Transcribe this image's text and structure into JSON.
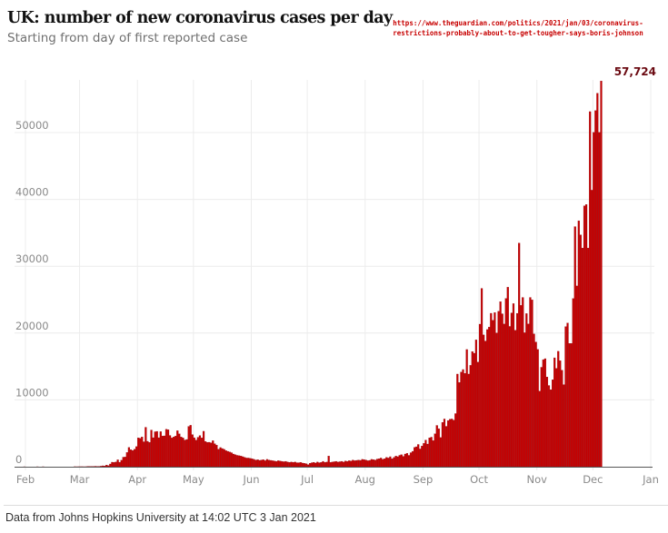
{
  "header": {
    "title": "UK: number of new coronavirus cases per day",
    "subtitle": "Starting from day of first reported case",
    "source_url_line1": "https://www.theguardian.com/politics/2021/jan/03/coronavirus-",
    "source_url_line2": "restrictions-probably-about-to-get-tougher-says-boris-johnson"
  },
  "footer": {
    "text": "Data from Johns Hopkins University at 14:02 UTC 3 Jan 2021"
  },
  "colors": {
    "bar": "#c70000",
    "bar_edge": "#8e0a12",
    "peak_label": "#6b0a12",
    "grid": "#ececec",
    "axis": "#555555"
  },
  "chart_data": {
    "type": "bar",
    "title": "UK: number of new coronavirus cases per day",
    "subtitle": "Starting from day of first reported case",
    "xlabel": "",
    "ylabel": "",
    "ylim": [
      0,
      57724
    ],
    "yticks": [
      0,
      10000,
      20000,
      30000,
      40000,
      50000
    ],
    "ytick_labels": [
      "0",
      "10000",
      "20000",
      "30000",
      "40000",
      "50000"
    ],
    "xtick_labels": [
      "Feb",
      "Mar",
      "Apr",
      "May",
      "Jun",
      "Jul",
      "Aug",
      "Sep",
      "Oct",
      "Nov",
      "Dec",
      "Jan"
    ],
    "xtick_day_index": [
      1,
      30,
      61,
      91,
      122,
      152,
      183,
      214,
      244,
      275,
      305,
      336
    ],
    "grid": true,
    "legend": "none",
    "peak_annotation": "57,724",
    "start_date": "2020-01-31",
    "values": [
      2,
      0,
      0,
      0,
      0,
      0,
      0,
      1,
      0,
      0,
      4,
      0,
      0,
      0,
      0,
      0,
      0,
      0,
      0,
      0,
      0,
      0,
      0,
      0,
      0,
      0,
      0,
      13,
      4,
      11,
      12,
      13,
      6,
      11,
      34,
      30,
      48,
      43,
      67,
      48,
      52,
      83,
      134,
      117,
      251,
      152,
      407,
      680,
      647,
      706,
      1035,
      665,
      967,
      1427,
      1452,
      2129,
      2885,
      2546,
      2433,
      2619,
      3009,
      4324,
      4244,
      4450,
      3735,
      5903,
      3802,
      3634,
      5491,
      4344,
      5233,
      5288,
      4342,
      5252,
      4603,
      4617,
      5599,
      5525,
      4676,
      4301,
      4451,
      4583,
      5386,
      4913,
      4463,
      4309,
      3996,
      4076,
      6032,
      6201,
      4806,
      4339,
      3985,
      4406,
      4664,
      4303,
      5307,
      3777,
      3643,
      3662,
      3573,
      3892,
      3446,
      3224,
      2619,
      2869,
      2720,
      2600,
      2400,
      2300,
      2200,
      2100,
      1900,
      1800,
      1700,
      1650,
      1600,
      1500,
      1400,
      1300,
      1300,
      1250,
      1200,
      1100,
      1000,
      1050,
      950,
      1000,
      1050,
      900,
      1100,
      1000,
      950,
      900,
      850,
      800,
      900,
      850,
      800,
      750,
      800,
      700,
      650,
      700,
      650,
      700,
      600,
      600,
      650,
      550,
      500,
      450,
      300,
      520,
      600,
      650,
      550,
      700,
      600,
      650,
      800,
      650,
      700,
      1600,
      650,
      700,
      750,
      800,
      700,
      750,
      800,
      700,
      850,
      800,
      900,
      850,
      1000,
      900,
      950,
      1000,
      950,
      1100,
      1050,
      1000,
      900,
      950,
      1100,
      1050,
      1000,
      1150,
      1200,
      1300,
      1100,
      1200,
      1400,
      1300,
      1500,
      1200,
      1400,
      1600,
      1500,
      1700,
      1800,
      1550,
      1900,
      2000,
      1700,
      2100,
      2300,
      2900,
      2988,
      3330,
      2659,
      3105,
      3497,
      3991,
      3395,
      4322,
      4422,
      3899,
      4926,
      6178,
      5693,
      4368,
      6634,
      7143,
      6042,
      6914,
      7108,
      7143,
      6968,
      7951,
      13864,
      12594,
      14162,
      14542,
      13972,
      17540,
      13864,
      15166,
      17234,
      16982,
      18980,
      15650,
      21331,
      26688,
      19724,
      18804,
      20530,
      20890,
      22961,
      21915,
      23065,
      20018,
      23254,
      24701,
      22885,
      21350,
      25177,
      26860,
      20995,
      23012,
      24405,
      20412,
      22950,
      33470,
      24141,
      25329,
      20051,
      22915,
      21363,
      25331,
      24962,
      19875,
      18662,
      17555,
      11299,
      14879,
      16022,
      16170,
      13430,
      12155,
      11531,
      13014,
      16298,
      14718,
      17272,
      15871,
      14450,
      12282,
      20964,
      21502,
      18447,
      18450,
      25161,
      35928,
      27052,
      36804,
      34693,
      32725,
      39036,
      39237,
      32725,
      53135,
      41385,
      50023,
      53285,
      55892,
      50023,
      57724
    ]
  }
}
